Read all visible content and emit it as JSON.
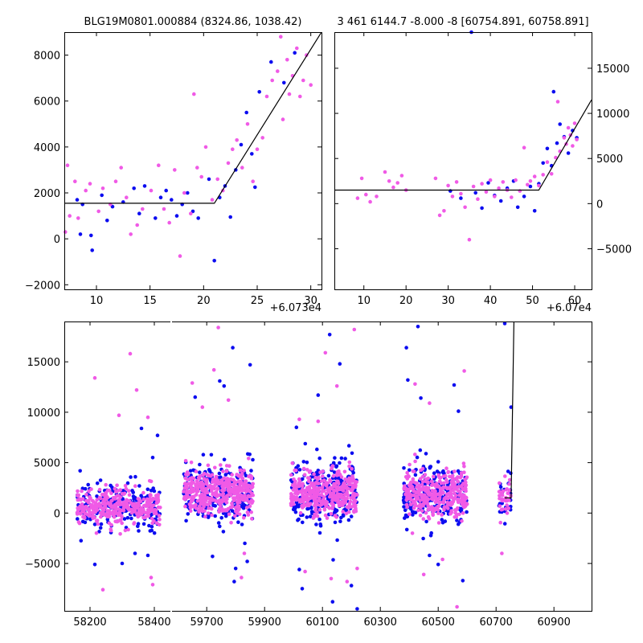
{
  "chart_data": [
    {
      "id": "zoom-left",
      "type": "scatter",
      "title": "BLG19M0801.000884 (8324.86, 1038.42)",
      "x_offset_label": "+6.073e4",
      "xlim": [
        7,
        31
      ],
      "ylim": [
        -2200,
        9000
      ],
      "x_ticks": [
        10,
        15,
        20,
        25,
        30
      ],
      "y_ticks": [
        -2000,
        0,
        2000,
        4000,
        6000,
        8000
      ],
      "y_tick_side": "left",
      "fit_line": {
        "x": [
          7,
          21,
          31
        ],
        "y": [
          1550,
          1550,
          9000
        ]
      },
      "series": [
        {
          "name": "blue",
          "color": "#0c0cf0",
          "points": [
            [
              8.2,
              1700
            ],
            [
              8.7,
              1500
            ],
            [
              8.5,
              200
            ],
            [
              9.5,
              150
            ],
            [
              9.6,
              -500
            ],
            [
              10.5,
              1900
            ],
            [
              11,
              800
            ],
            [
              11.5,
              1400
            ],
            [
              12.5,
              1600
            ],
            [
              13.5,
              2200
            ],
            [
              14,
              1100
            ],
            [
              14.5,
              2300
            ],
            [
              15.5,
              900
            ],
            [
              16,
              1800
            ],
            [
              16.5,
              2100
            ],
            [
              17,
              1700
            ],
            [
              17.5,
              1000
            ],
            [
              18,
              1500
            ],
            [
              18.5,
              2000
            ],
            [
              19,
              1200
            ],
            [
              19.5,
              900
            ],
            [
              20.5,
              2600
            ],
            [
              21,
              -950
            ],
            [
              21.5,
              1800
            ],
            [
              22,
              2300
            ],
            [
              22.5,
              950
            ],
            [
              23,
              3000
            ],
            [
              23.5,
              4100
            ],
            [
              24,
              5500
            ],
            [
              24.5,
              3700
            ],
            [
              24.8,
              2250
            ],
            [
              25.2,
              6400
            ],
            [
              26.3,
              7700
            ],
            [
              27.5,
              6800
            ],
            [
              28.5,
              8100
            ]
          ]
        },
        {
          "name": "magenta",
          "color": "#f05ae6",
          "points": [
            [
              7.1,
              300
            ],
            [
              7.3,
              3200
            ],
            [
              7.5,
              1000
            ],
            [
              8,
              2500
            ],
            [
              8.3,
              900
            ],
            [
              9,
              2100
            ],
            [
              9.4,
              2400
            ],
            [
              10.2,
              1200
            ],
            [
              10.6,
              2200
            ],
            [
              11.3,
              1500
            ],
            [
              11.8,
              2500
            ],
            [
              12.3,
              3100
            ],
            [
              12.8,
              1800
            ],
            [
              13.2,
              200
            ],
            [
              13.8,
              600
            ],
            [
              14.3,
              1300
            ],
            [
              15.1,
              2100
            ],
            [
              15.8,
              3200
            ],
            [
              16.3,
              1300
            ],
            [
              16.8,
              700
            ],
            [
              17.3,
              3000
            ],
            [
              17.8,
              -750
            ],
            [
              18.2,
              2000
            ],
            [
              18.8,
              1100
            ],
            [
              19.1,
              6300
            ],
            [
              19.4,
              3100
            ],
            [
              19.8,
              2700
            ],
            [
              20.2,
              4000
            ],
            [
              20.8,
              1700
            ],
            [
              21.3,
              2600
            ],
            [
              21.8,
              2100
            ],
            [
              22.3,
              3300
            ],
            [
              22.7,
              3900
            ],
            [
              23.1,
              4300
            ],
            [
              23.6,
              3100
            ],
            [
              24.1,
              5000
            ],
            [
              24.6,
              2500
            ],
            [
              25,
              3900
            ],
            [
              25.5,
              4400
            ],
            [
              25.9,
              6200
            ],
            [
              26.4,
              6900
            ],
            [
              26.9,
              7300
            ],
            [
              27.2,
              8800
            ],
            [
              27.4,
              5200
            ],
            [
              27.8,
              7800
            ],
            [
              28,
              6300
            ],
            [
              28.3,
              7100
            ],
            [
              28.7,
              8300
            ],
            [
              29,
              6200
            ],
            [
              29.3,
              6900
            ],
            [
              29.6,
              8000
            ],
            [
              30,
              6700
            ]
          ]
        }
      ]
    },
    {
      "id": "zoom-right",
      "type": "scatter",
      "title": "3 461 6144.7 -8.000 -8 [60754.891, 60758.891]",
      "x_offset_label": "+6.07e4",
      "xlim": [
        3,
        64
      ],
      "ylim": [
        -9500,
        19000
      ],
      "x_ticks": [
        10,
        20,
        30,
        40,
        50,
        60
      ],
      "y_ticks": [
        -5000,
        0,
        5000,
        10000,
        15000
      ],
      "y_tick_side": "right",
      "fit_line": {
        "x": [
          3,
          51.5,
          64
        ],
        "y": [
          1500,
          1500,
          11500
        ]
      },
      "series": [
        {
          "name": "blue",
          "color": "#0c0cf0",
          "points": [
            [
              30.5,
              1400
            ],
            [
              33,
              600
            ],
            [
              35.5,
              19000
            ],
            [
              36.5,
              1200
            ],
            [
              38,
              -500
            ],
            [
              39.5,
              2300
            ],
            [
              41,
              900
            ],
            [
              42.5,
              300
            ],
            [
              44,
              1700
            ],
            [
              45.5,
              2500
            ],
            [
              46.5,
              -400
            ],
            [
              48,
              800
            ],
            [
              49.5,
              1900
            ],
            [
              50.5,
              -800
            ],
            [
              51.5,
              2200
            ],
            [
              52.5,
              4500
            ],
            [
              53.5,
              6100
            ],
            [
              54.5,
              4200
            ],
            [
              55,
              12400
            ],
            [
              55.8,
              6700
            ],
            [
              56.5,
              8800
            ],
            [
              57.5,
              7400
            ],
            [
              58.5,
              5600
            ],
            [
              59.5,
              8100
            ],
            [
              60.5,
              7300
            ]
          ]
        },
        {
          "name": "magenta",
          "color": "#f05ae6",
          "points": [
            [
              8.5,
              600
            ],
            [
              9.5,
              2800
            ],
            [
              10.5,
              1000
            ],
            [
              11.5,
              200
            ],
            [
              13,
              800
            ],
            [
              15,
              3500
            ],
            [
              16,
              2500
            ],
            [
              17,
              1800
            ],
            [
              18,
              2300
            ],
            [
              19,
              3100
            ],
            [
              20,
              1500
            ],
            [
              27,
              2800
            ],
            [
              28,
              -1300
            ],
            [
              29,
              -800
            ],
            [
              30,
              2000
            ],
            [
              31,
              800
            ],
            [
              32,
              2400
            ],
            [
              33,
              1100
            ],
            [
              34,
              -400
            ],
            [
              35,
              -4000
            ],
            [
              36,
              1900
            ],
            [
              37,
              500
            ],
            [
              38,
              2200
            ],
            [
              39,
              1300
            ],
            [
              40,
              2600
            ],
            [
              41,
              800
            ],
            [
              42,
              1700
            ],
            [
              43,
              2400
            ],
            [
              44,
              1500
            ],
            [
              45,
              700
            ],
            [
              46,
              2600
            ],
            [
              47,
              1400
            ],
            [
              48,
              6200
            ],
            [
              48.8,
              2100
            ],
            [
              49.5,
              2500
            ],
            [
              50.5,
              3000
            ],
            [
              51.5,
              2000
            ],
            [
              52.5,
              3200
            ],
            [
              53.5,
              4600
            ],
            [
              54.5,
              3300
            ],
            [
              55.5,
              5100
            ],
            [
              56,
              11300
            ],
            [
              56.5,
              5800
            ],
            [
              57.5,
              7300
            ],
            [
              58,
              6600
            ],
            [
              58.5,
              8400
            ],
            [
              59,
              7600
            ],
            [
              59.5,
              6400
            ],
            [
              60,
              8900
            ],
            [
              60.5,
              7100
            ]
          ]
        }
      ]
    },
    {
      "id": "full-lightcurve",
      "type": "scatter",
      "title": "",
      "xlim": [
        58120,
        61030
      ],
      "ylim": [
        -9700,
        19000
      ],
      "x_ticks": [
        58200,
        58400,
        59700,
        59900,
        60100,
        60300,
        60500,
        60700,
        60900
      ],
      "y_ticks": [
        -5000,
        0,
        5000,
        10000,
        15000
      ],
      "y_tick_side": "left",
      "segments": [
        {
          "xlim": [
            58120,
            58450
          ],
          "x_ticks": [
            58200,
            58400
          ]
        },
        {
          "xlim": [
            59580,
            61030
          ],
          "x_ticks": [
            59700,
            59900,
            60100,
            60300,
            60500,
            60700,
            60900
          ]
        }
      ],
      "seasons": [
        {
          "x_range": [
            58160,
            58420
          ],
          "center": 600,
          "spread": 1100,
          "blue_count": 200,
          "magenta_count": 320
        },
        {
          "x_range": [
            59620,
            59860
          ],
          "center": 2000,
          "spread": 1300,
          "blue_count": 260,
          "magenta_count": 380
        },
        {
          "x_range": [
            59990,
            60220
          ],
          "center": 2000,
          "spread": 1300,
          "blue_count": 260,
          "magenta_count": 380
        },
        {
          "x_range": [
            60380,
            60600
          ],
          "center": 1900,
          "spread": 1300,
          "blue_count": 240,
          "magenta_count": 360
        },
        {
          "x_range": [
            60710,
            60752
          ],
          "center": 1500,
          "spread": 1000,
          "blue_count": 25,
          "magenta_count": 35
        }
      ],
      "outliers": {
        "blue": [
          [
            58215,
            -5100
          ],
          [
            58300,
            -5000
          ],
          [
            58340,
            -4000
          ],
          [
            58380,
            -4200
          ],
          [
            58410,
            7700
          ],
          [
            58395,
            5500
          ],
          [
            58360,
            8400
          ],
          [
            59660,
            11500
          ],
          [
            59720,
            -4300
          ],
          [
            59745,
            13100
          ],
          [
            59760,
            12600
          ],
          [
            59790,
            16400
          ],
          [
            59795,
            -6800
          ],
          [
            59800,
            -5500
          ],
          [
            59840,
            -4800
          ],
          [
            59850,
            14700
          ],
          [
            60010,
            8500
          ],
          [
            60020,
            -5600
          ],
          [
            60030,
            -7500
          ],
          [
            60085,
            11700
          ],
          [
            60125,
            17700
          ],
          [
            60135,
            -8800
          ],
          [
            60160,
            14800
          ],
          [
            60200,
            -7200
          ],
          [
            60220,
            -9500
          ],
          [
            60390,
            16400
          ],
          [
            60395,
            13200
          ],
          [
            60430,
            18500
          ],
          [
            60440,
            11400
          ],
          [
            60470,
            -4200
          ],
          [
            60500,
            -5100
          ],
          [
            60555,
            12700
          ],
          [
            60570,
            10100
          ],
          [
            60585,
            -6700
          ],
          [
            60730,
            18800
          ],
          [
            60752,
            10500
          ]
        ],
        "magenta": [
          [
            58215,
            13400
          ],
          [
            58240,
            -7600
          ],
          [
            58290,
            9700
          ],
          [
            58325,
            15800
          ],
          [
            58345,
            12200
          ],
          [
            58380,
            9500
          ],
          [
            58390,
            -6400
          ],
          [
            58395,
            -7100
          ],
          [
            59650,
            12900
          ],
          [
            59685,
            10500
          ],
          [
            59725,
            14200
          ],
          [
            59740,
            18400
          ],
          [
            59775,
            11200
          ],
          [
            59820,
            -6400
          ],
          [
            59830,
            -4000
          ],
          [
            60020,
            9300
          ],
          [
            60040,
            -5800
          ],
          [
            60085,
            9100
          ],
          [
            60110,
            15900
          ],
          [
            60130,
            -6500
          ],
          [
            60150,
            12600
          ],
          [
            60185,
            -6800
          ],
          [
            60210,
            18200
          ],
          [
            60220,
            -5500
          ],
          [
            60420,
            12800
          ],
          [
            60450,
            -6100
          ],
          [
            60470,
            10900
          ],
          [
            60515,
            -4600
          ],
          [
            60565,
            -9300
          ],
          [
            60590,
            14100
          ],
          [
            60720,
            -4000
          ]
        ]
      },
      "fit_line": {
        "x": [
          60730,
          60752,
          60762
        ],
        "y": [
          1500,
          1500,
          19500
        ]
      }
    }
  ]
}
